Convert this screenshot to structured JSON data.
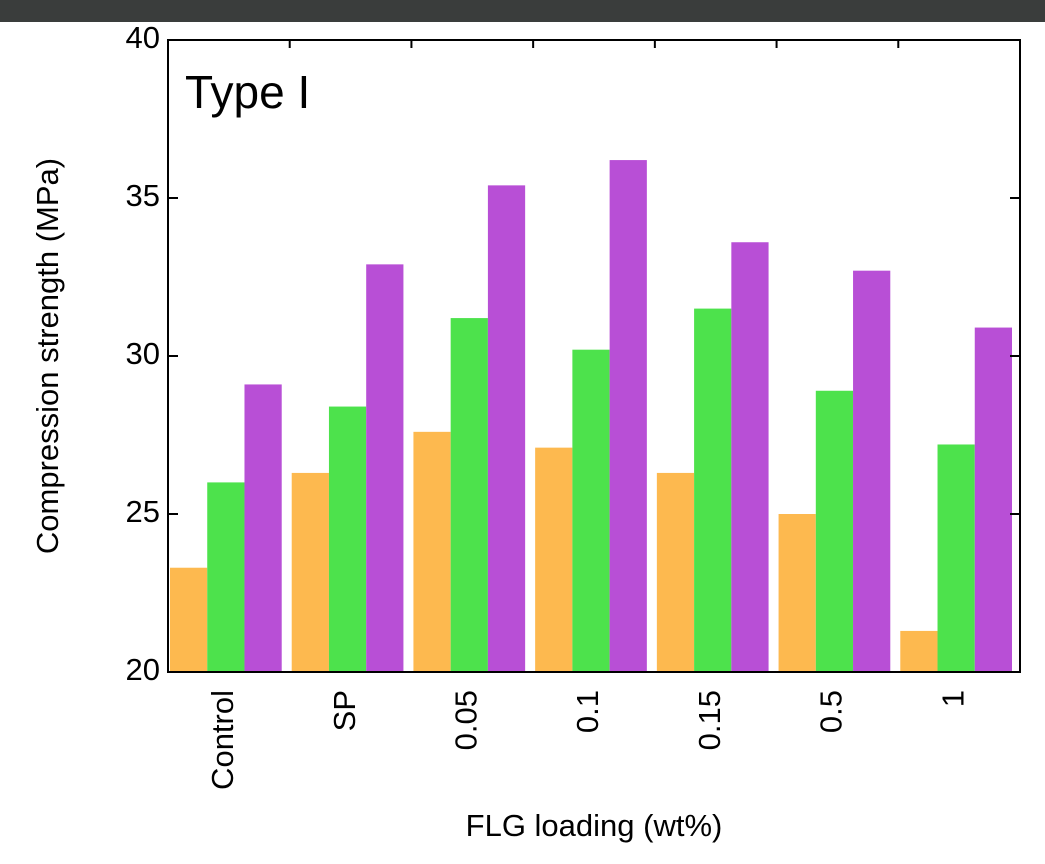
{
  "chart_data": {
    "type": "bar",
    "title": "Type I",
    "x_label": "FLG loading (wt%)",
    "y_label": "Compression strength (MPa)",
    "categories": [
      "Control",
      "SP",
      "0.05",
      "0.1",
      "0.15",
      "0.5",
      "1"
    ],
    "series": [
      {
        "color": "#fdb94f",
        "values": [
          23.3,
          26.3,
          27.6,
          27.1,
          26.3,
          25.0,
          21.3
        ]
      },
      {
        "color": "#4de24c",
        "values": [
          26.0,
          28.4,
          31.2,
          30.2,
          31.5,
          28.9,
          27.2
        ]
      },
      {
        "color": "#b84fd6",
        "values": [
          29.1,
          32.9,
          35.4,
          36.2,
          33.6,
          32.7,
          30.9
        ]
      }
    ],
    "ylim": [
      20,
      40
    ],
    "yticks": [
      20,
      25,
      30,
      35,
      40
    ]
  }
}
